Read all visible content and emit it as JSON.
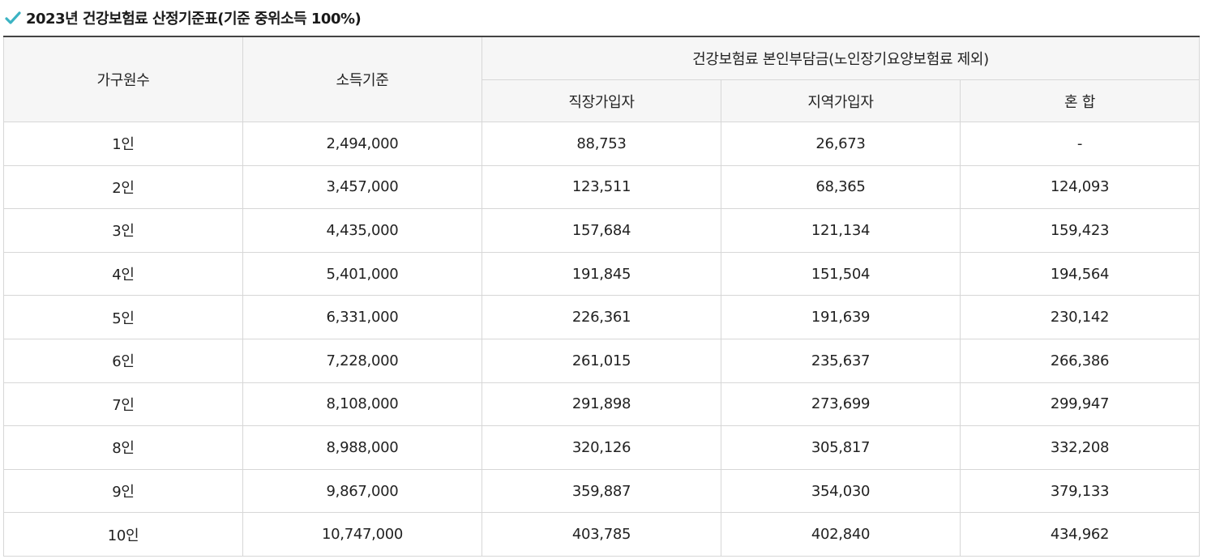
{
  "page": {
    "title": "2023년 건강보험료 산정기준표(기준 중위소득 100%)",
    "title_icon": "check-icon",
    "accent_color": "#3bb3c3"
  },
  "table": {
    "headers": {
      "household": "가구원수",
      "income": "소득기준",
      "premium_group": "건강보험료 본인부담금(노인장기요양보험료 제외)",
      "employee": "직장가입자",
      "regional": "지역가입자",
      "mixed": "혼 합"
    },
    "rows": [
      [
        "1인",
        "2,494,000",
        "88,753",
        "26,673",
        "-"
      ],
      [
        "2인",
        "3,457,000",
        "123,511",
        "68,365",
        "124,093"
      ],
      [
        "3인",
        "4,435,000",
        "157,684",
        "121,134",
        "159,423"
      ],
      [
        "4인",
        "5,401,000",
        "191,845",
        "151,504",
        "194,564"
      ],
      [
        "5인",
        "6,331,000",
        "226,361",
        "191,639",
        "230,142"
      ],
      [
        "6인",
        "7,228,000",
        "261,015",
        "235,637",
        "266,386"
      ],
      [
        "7인",
        "8,108,000",
        "291,898",
        "273,699",
        "299,947"
      ],
      [
        "8인",
        "8,988,000",
        "320,126",
        "305,817",
        "332,208"
      ],
      [
        "9인",
        "9,867,000",
        "359,887",
        "354,030",
        "379,133"
      ],
      [
        "10인",
        "10,747,000",
        "403,785",
        "402,840",
        "434,962"
      ]
    ]
  }
}
